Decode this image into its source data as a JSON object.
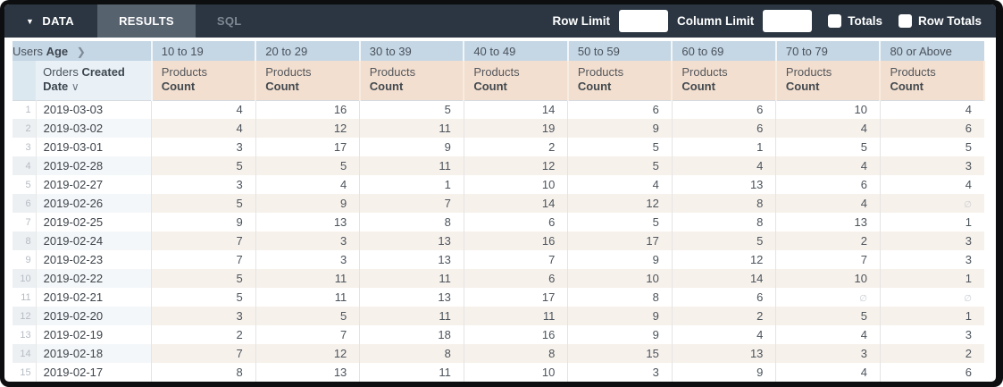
{
  "toolbar": {
    "data_tab": "DATA",
    "results_tab": "RESULTS",
    "sql_tab": "SQL",
    "row_limit_label": "Row Limit",
    "row_limit_value": "",
    "column_limit_label": "Column Limit",
    "column_limit_value": "",
    "totals_label": "Totals",
    "row_totals_label": "Row Totals",
    "totals_checked": false,
    "row_totals_checked": false
  },
  "table": {
    "pivot_header": {
      "prefix": "Users",
      "field": "Age"
    },
    "row_header": {
      "prefix": "Orders",
      "field": "Created Date"
    },
    "measure_header": {
      "prefix": "Products",
      "field": "Count"
    },
    "age_buckets": [
      "10 to 19",
      "20 to 29",
      "30 to 39",
      "40 to 49",
      "50 to 59",
      "60 to 69",
      "70 to 79",
      "80 or Above"
    ],
    "null_symbol": "∅",
    "rows": [
      {
        "num": 1,
        "date": "2019-03-03",
        "values": [
          4,
          16,
          5,
          14,
          6,
          6,
          10,
          4
        ]
      },
      {
        "num": 2,
        "date": "2019-03-02",
        "values": [
          4,
          12,
          11,
          19,
          9,
          6,
          4,
          6
        ]
      },
      {
        "num": 3,
        "date": "2019-03-01",
        "values": [
          3,
          17,
          9,
          2,
          5,
          1,
          5,
          5
        ]
      },
      {
        "num": 4,
        "date": "2019-02-28",
        "values": [
          5,
          5,
          11,
          12,
          5,
          4,
          4,
          3
        ]
      },
      {
        "num": 5,
        "date": "2019-02-27",
        "values": [
          3,
          4,
          1,
          10,
          4,
          13,
          6,
          4
        ]
      },
      {
        "num": 6,
        "date": "2019-02-26",
        "values": [
          5,
          9,
          7,
          14,
          12,
          8,
          4,
          null
        ]
      },
      {
        "num": 7,
        "date": "2019-02-25",
        "values": [
          9,
          13,
          8,
          6,
          5,
          8,
          13,
          1
        ]
      },
      {
        "num": 8,
        "date": "2019-02-24",
        "values": [
          7,
          3,
          13,
          16,
          17,
          5,
          2,
          3
        ]
      },
      {
        "num": 9,
        "date": "2019-02-23",
        "values": [
          7,
          3,
          13,
          7,
          9,
          12,
          7,
          3
        ]
      },
      {
        "num": 10,
        "date": "2019-02-22",
        "values": [
          5,
          11,
          11,
          6,
          10,
          14,
          10,
          1
        ]
      },
      {
        "num": 11,
        "date": "2019-02-21",
        "values": [
          5,
          11,
          13,
          17,
          8,
          6,
          null,
          null
        ]
      },
      {
        "num": 12,
        "date": "2019-02-20",
        "values": [
          3,
          5,
          11,
          11,
          9,
          2,
          5,
          1
        ]
      },
      {
        "num": 13,
        "date": "2019-02-19",
        "values": [
          2,
          7,
          18,
          16,
          9,
          4,
          4,
          3
        ]
      },
      {
        "num": 14,
        "date": "2019-02-18",
        "values": [
          7,
          12,
          8,
          8,
          15,
          13,
          3,
          2
        ]
      },
      {
        "num": 15,
        "date": "2019-02-17",
        "values": [
          8,
          13,
          11,
          10,
          3,
          9,
          4,
          6
        ]
      }
    ]
  },
  "colors": {
    "topbar_bg": "#2b3642",
    "active_tab_bg": "#57626f",
    "pivot_header_bg": "#c5d6e4",
    "measure_header_bg": "#f3dfcf",
    "even_row_value_bg": "#f7f1eb",
    "even_row_date_bg": "#f4f7f9",
    "frame": "#0d0e10"
  }
}
